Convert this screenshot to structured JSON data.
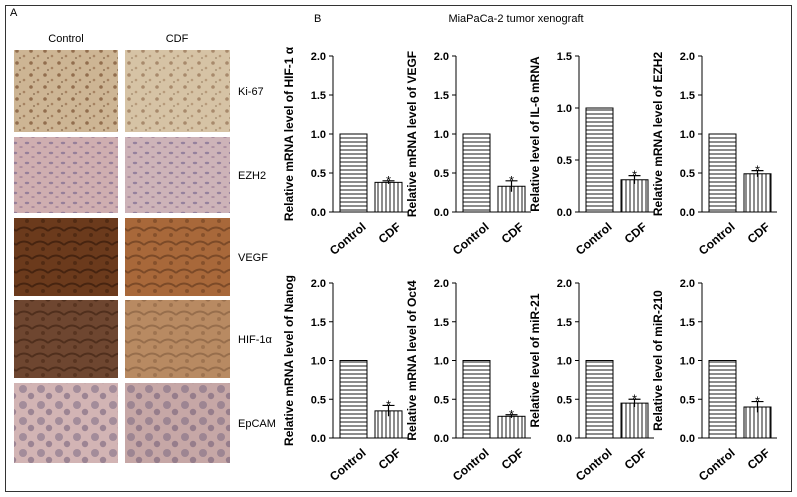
{
  "figure": {
    "panel_a_label": "A",
    "panel_b_label": "B",
    "title": "MiaPaCa-2 tumor xenograft"
  },
  "panel_a": {
    "columns": [
      "Control",
      "CDF"
    ],
    "rows": [
      "Ki-67",
      "EZH2",
      "VEGF",
      "HIF-1α",
      "EpCAM"
    ]
  },
  "chart_data": [
    {
      "type": "bar",
      "y_label": "Relative mRNA level of HIF-1 α",
      "categories": [
        "Control",
        "CDF"
      ],
      "values": [
        1.0,
        0.38
      ],
      "errors": [
        null,
        0.02
      ],
      "significance": [
        null,
        "*"
      ],
      "color": "#000000",
      "ylim": [
        0,
        2
      ],
      "yticks": [
        {
          "value": 0,
          "label": "0.0"
        },
        {
          "value": 0.5,
          "label": "0.5"
        },
        {
          "value": 1,
          "label": "1.0"
        },
        {
          "value": 1.5,
          "label": "1.5"
        },
        {
          "value": 2,
          "label": "2.0"
        }
      ]
    },
    {
      "type": "bar",
      "y_label": "Relative mRNA level of VEGF",
      "categories": [
        "Control",
        "CDF"
      ],
      "values": [
        1.0,
        0.33
      ],
      "errors": [
        null,
        0.07
      ],
      "significance": [
        null,
        "*"
      ],
      "color": "#000000",
      "ylim": [
        0,
        2
      ],
      "yticks": [
        {
          "value": 0,
          "label": "0.0"
        },
        {
          "value": 0.5,
          "label": "0.5"
        },
        {
          "value": 1,
          "label": "1.0"
        },
        {
          "value": 1.5,
          "label": "1.5"
        },
        {
          "value": 2,
          "label": "2.0"
        }
      ]
    },
    {
      "type": "bar",
      "y_label": "Relative level of IL-6 mRNA",
      "categories": [
        "Control",
        "CDF"
      ],
      "values": [
        1.0,
        0.31
      ],
      "errors": [
        null,
        0.04
      ],
      "significance": [
        null,
        "*"
      ],
      "color": "#000000",
      "ylim": [
        0,
        1.5
      ],
      "yticks": [
        {
          "value": 0,
          "label": "0.0"
        },
        {
          "value": 0.5,
          "label": "0.5"
        },
        {
          "value": 1,
          "label": "1.0"
        },
        {
          "value": 1.5,
          "label": "1.5"
        }
      ]
    },
    {
      "type": "bar",
      "y_label": "Relative mRNA level of EZH2",
      "categories": [
        "Control",
        "CDF"
      ],
      "values": [
        1.0,
        0.49
      ],
      "errors": [
        null,
        0.04
      ],
      "significance": [
        null,
        "*"
      ],
      "color": "#000000",
      "ylim": [
        0,
        2
      ],
      "yticks": [
        {
          "value": 0,
          "label": "0.0"
        },
        {
          "value": 0.5,
          "label": "0.5"
        },
        {
          "value": 1,
          "label": "1.0"
        },
        {
          "value": 1.5,
          "label": "1.5"
        },
        {
          "value": 2,
          "label": "2.0"
        }
      ]
    },
    {
      "type": "bar",
      "y_label": "Relative mRNA level of Nanog",
      "categories": [
        "Control",
        "CDF"
      ],
      "values": [
        1.0,
        0.35
      ],
      "errors": [
        null,
        0.07
      ],
      "significance": [
        null,
        "*"
      ],
      "color": "#000000",
      "ylim": [
        0,
        2
      ],
      "yticks": [
        {
          "value": 0,
          "label": "0.0"
        },
        {
          "value": 0.5,
          "label": "0.5"
        },
        {
          "value": 1,
          "label": "1.0"
        },
        {
          "value": 1.5,
          "label": "1.5"
        },
        {
          "value": 2,
          "label": "2.0"
        }
      ]
    },
    {
      "type": "bar",
      "y_label": "Relative mRNA level of Oct4",
      "categories": [
        "Control",
        "CDF"
      ],
      "values": [
        1.0,
        0.28
      ],
      "errors": [
        null,
        0.02
      ],
      "significance": [
        null,
        "*"
      ],
      "color": "#000000",
      "ylim": [
        0,
        2
      ],
      "yticks": [
        {
          "value": 0,
          "label": "0.0"
        },
        {
          "value": 0.5,
          "label": "0.5"
        },
        {
          "value": 1,
          "label": "1.0"
        },
        {
          "value": 1.5,
          "label": "1.5"
        },
        {
          "value": 2,
          "label": "2.0"
        }
      ]
    },
    {
      "type": "bar",
      "y_label": "Relative level of miR-21",
      "categories": [
        "Control",
        "CDF"
      ],
      "values": [
        1.0,
        0.45
      ],
      "errors": [
        null,
        0.05
      ],
      "significance": [
        null,
        "*"
      ],
      "color": "#000000",
      "ylim": [
        0,
        2
      ],
      "yticks": [
        {
          "value": 0,
          "label": "0.0"
        },
        {
          "value": 0.5,
          "label": "0.5"
        },
        {
          "value": 1,
          "label": "1.0"
        },
        {
          "value": 1.5,
          "label": "1.5"
        },
        {
          "value": 2,
          "label": "2.0"
        }
      ]
    },
    {
      "type": "bar",
      "y_label": "Relative level of miR-210",
      "categories": [
        "Control",
        "CDF"
      ],
      "values": [
        1.0,
        0.4
      ],
      "errors": [
        null,
        0.07
      ],
      "significance": [
        null,
        "*"
      ],
      "color": "#000000",
      "ylim": [
        0,
        2
      ],
      "yticks": [
        {
          "value": 0,
          "label": "0.0"
        },
        {
          "value": 0.5,
          "label": "0.5"
        },
        {
          "value": 1,
          "label": "1.0"
        },
        {
          "value": 1.5,
          "label": "1.5"
        },
        {
          "value": 2,
          "label": "2.0"
        }
      ]
    }
  ]
}
